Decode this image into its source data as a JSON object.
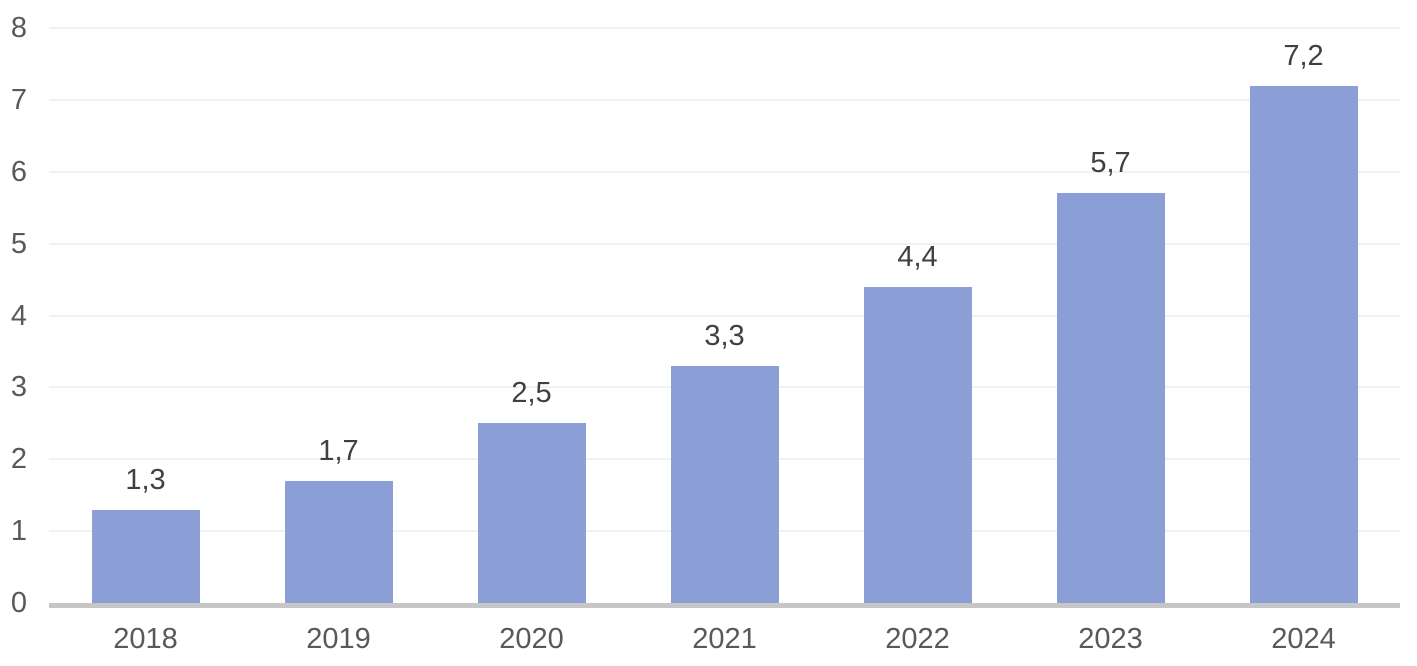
{
  "chart_data": {
    "type": "bar",
    "title": "",
    "xlabel": "",
    "ylabel": "",
    "categories": [
      "2018",
      "2019",
      "2020",
      "2021",
      "2022",
      "2023",
      "2024"
    ],
    "values": [
      1.3,
      1.7,
      2.5,
      3.3,
      4.4,
      5.7,
      7.2
    ],
    "value_labels": [
      "1,3",
      "1,7",
      "2,5",
      "3,3",
      "4,4",
      "5,7",
      "7,2"
    ],
    "ylim": [
      0,
      8
    ],
    "ytick_step": 1,
    "ytick_labels": [
      "0",
      "1",
      "2",
      "3",
      "4",
      "5",
      "6",
      "7",
      "8"
    ],
    "grid": true,
    "legend_position": "none",
    "colors": {
      "bar_fill": "#8b9fd6",
      "gridline": "#f1f1f1",
      "axis_line": "#c6c6c6",
      "tick_text": "#595959",
      "data_label": "#404040",
      "background": "#ffffff"
    }
  }
}
